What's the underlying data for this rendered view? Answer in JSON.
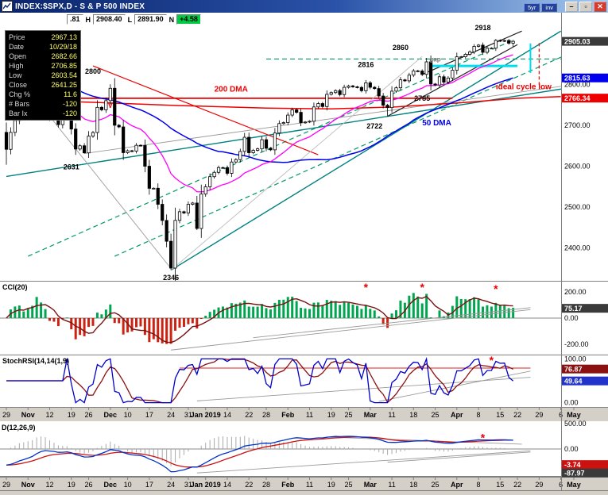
{
  "window": {
    "title": "INDEX:$SPX,D - S & P 500 INDEX",
    "toolbar_buttons": [
      {
        "label": "5yr"
      },
      {
        "label": "inv"
      }
    ],
    "controls": [
      {
        "name": "minimize",
        "glyph": "–"
      },
      {
        "name": "maximize",
        "glyph": "▫"
      },
      {
        "name": "close",
        "glyph": "✕"
      }
    ]
  },
  "quote_strip": {
    "cells": [
      {
        "text": ".81",
        "box": true
      },
      {
        "text": "H"
      },
      {
        "text": "2908.40",
        "box": true
      },
      {
        "text": "L"
      },
      {
        "text": "2891.90",
        "box": true
      },
      {
        "text": "N"
      },
      {
        "text": "+4.58",
        "box": true,
        "bg": "#00cc44"
      }
    ]
  },
  "data_box": {
    "rows": [
      [
        "Price",
        "2967.13"
      ],
      [
        "Date",
        "10/29/18"
      ],
      [
        "Open",
        "2682.66"
      ],
      [
        "High",
        "2706.85"
      ],
      [
        "Low",
        "2603.54"
      ],
      [
        "Close",
        "2641.25"
      ],
      [
        "Chg %",
        "11.6"
      ],
      [
        "# Bars",
        "-120"
      ],
      [
        "Bar Ix",
        "-120"
      ]
    ]
  },
  "chart_data": {
    "type": "candlestick",
    "symbol": "INDEX:$SPX,D",
    "title": "S & P 500 INDEX",
    "x_ticks": [
      [
        0,
        "29",
        0
      ],
      [
        5,
        "Nov",
        1
      ],
      [
        10,
        "12",
        0
      ],
      [
        15,
        "19",
        0
      ],
      [
        19,
        "26",
        0
      ],
      [
        24,
        "Dec",
        1
      ],
      [
        28,
        "10",
        0
      ],
      [
        33,
        "17",
        0
      ],
      [
        38,
        "24",
        0
      ],
      [
        42,
        "31",
        0
      ],
      [
        46,
        "Jan 2019",
        1
      ],
      [
        51,
        "14",
        0
      ],
      [
        56,
        "22",
        0
      ],
      [
        60,
        "28",
        0
      ],
      [
        65,
        "Feb",
        1
      ],
      [
        70,
        "11",
        0
      ],
      [
        75,
        "19",
        0
      ],
      [
        79,
        "25",
        0
      ],
      [
        84,
        "Mar",
        1
      ],
      [
        89,
        "11",
        0
      ],
      [
        94,
        "18",
        0
      ],
      [
        99,
        "25",
        0
      ],
      [
        104,
        "Apr",
        1
      ],
      [
        109,
        "8",
        0
      ],
      [
        114,
        "15",
        0
      ],
      [
        118,
        "22",
        0
      ],
      [
        123,
        "29",
        0
      ],
      [
        128,
        "6",
        0
      ],
      [
        131,
        "May",
        1
      ]
    ],
    "price_pane": {
      "ylim": [
        2320,
        2975
      ],
      "first_bar": {
        "open": 2682.66,
        "high": 2706.85,
        "low": 2603.54,
        "close": 2641.25
      },
      "closes": [
        2641.25,
        2682.63,
        2711.74,
        2740.37,
        2723.06,
        2738.31,
        2755.45,
        2813.89,
        2806.83,
        2781.01,
        2726.22,
        2722.18,
        2701.58,
        2730.2,
        2736.27,
        2690.73,
        2641.89,
        2649.93,
        2632.56,
        2673.45,
        2682.17,
        2743.79,
        2737.8,
        2760.17,
        2790.37,
        2700.06,
        2695.95,
        2633.08,
        2637.72,
        2636.78,
        2651.07,
        2650.54,
        2599.95,
        2545.94,
        2546.16,
        2506.96,
        2467.42,
        2416.62,
        2351.1,
        2467.7,
        2488.83,
        2485.74,
        2506.85,
        2510.03,
        2447.89,
        2531.94,
        2549.69,
        2574.41,
        2584.96,
        2596.64,
        2596.26,
        2582.61,
        2610.3,
        2616.1,
        2635.96,
        2670.71,
        2632.9,
        2638.7,
        2642.33,
        2664.76,
        2643.85,
        2640.0,
        2681.05,
        2704.1,
        2706.53,
        2724.87,
        2737.7,
        2731.61,
        2706.05,
        2707.88,
        2709.8,
        2744.73,
        2753.03,
        2745.73,
        2775.6,
        2779.76,
        2784.7,
        2774.88,
        2792.67,
        2796.11,
        2793.9,
        2792.38,
        2784.49,
        2803.69,
        2792.81,
        2789.65,
        2771.45,
        2748.93,
        2743.07,
        2783.3,
        2791.52,
        2810.92,
        2808.48,
        2822.48,
        2832.94,
        2832.57,
        2824.23,
        2854.88,
        2800.71,
        2798.36,
        2818.46,
        2805.37,
        2815.44,
        2834.4,
        2867.19,
        2867.24,
        2873.4,
        2879.39,
        2892.74,
        2895.77,
        2878.2,
        2888.21,
        2888.32,
        2907.41,
        2905.58,
        2907.06,
        2900.45,
        2905.03
      ],
      "high_overrides": {
        "7": 2815.15,
        "24": 2800.18,
        "113": 2910.54,
        "117": 2908.4
      },
      "low_overrides": {
        "18": 2631.09,
        "38": 2346.58,
        "44": 2443.96,
        "88": 2722.27,
        "117": 2891.9
      },
      "ema20_seed": 2780,
      "sma50_pad": {
        "start": 2940,
        "step": 3.75,
        "count": 49
      },
      "dma200_points": [
        [
          0,
          2763
        ],
        [
          20,
          2756
        ],
        [
          40,
          2748
        ],
        [
          60,
          2742
        ],
        [
          75,
          2740
        ],
        [
          90,
          2745
        ],
        [
          105,
          2755
        ],
        [
          118,
          2766
        ],
        [
          128,
          2770
        ]
      ],
      "grid_labels": [
        {
          "v": 2900,
          "t": "2900.00"
        },
        {
          "v": 2800,
          "t": "2800.00"
        },
        {
          "v": 2700,
          "t": "2700.00"
        },
        {
          "v": 2600,
          "t": "2600.00"
        },
        {
          "v": 2500,
          "t": "2500.00"
        },
        {
          "v": 2400,
          "t": "2400.00"
        }
      ],
      "tags": [
        {
          "v": 2905.03,
          "t": "2905.03",
          "bg": "#3a3a3a"
        },
        {
          "v": 2815.63,
          "t": "2815.63",
          "bg": "#0000ee"
        },
        {
          "v": 2766.34,
          "t": "2766.34",
          "bg": "#ee0000"
        }
      ],
      "trendlines": [
        {
          "p": [
            [
              0,
              2575
            ],
            [
              132,
              2795
            ]
          ],
          "c": "#008080",
          "w": 1.4
        },
        {
          "p": [
            [
              38,
              2346
            ],
            [
              128,
              2930
            ]
          ],
          "c": "#008080",
          "w": 1.4
        },
        {
          "p": [
            [
              5,
              2380
            ],
            [
              117,
              2908
            ]
          ],
          "c": "#009966",
          "w": 1.2,
          "d": "6,4"
        },
        {
          "p": [
            [
              25,
              2380
            ],
            [
              132,
              2885
            ]
          ],
          "c": "#009966",
          "w": 1.2,
          "d": "6,4"
        },
        {
          "p": [
            [
              60,
              2862
            ],
            [
              132,
              2862
            ]
          ],
          "c": "#009966",
          "w": 1.2,
          "d": "6,4"
        },
        {
          "p": [
            [
              0,
              2766
            ],
            [
              103,
              2766
            ]
          ],
          "c": "#ee0000",
          "w": 1.8
        },
        {
          "p": [
            [
              20,
              2845
            ],
            [
              72,
              2628
            ]
          ],
          "c": "#ee0000",
          "w": 1.2
        },
        {
          "p": [
            [
              3,
              2815
            ],
            [
              38,
              2350
            ]
          ],
          "c": "#999999",
          "w": 0.9
        },
        {
          "p": [
            [
              18,
              2631
            ],
            [
              130,
              2798
            ]
          ],
          "c": "#999999",
          "w": 0.9
        },
        {
          "p": [
            [
              38,
              2346
            ],
            [
              96,
              2868
            ]
          ],
          "c": "#bbbbbb",
          "w": 0.9
        },
        {
          "p": [
            [
              88,
              2722
            ],
            [
              118,
              2897
            ]
          ],
          "c": "#222222",
          "w": 1.2
        },
        {
          "p": [
            [
              96,
              2824
            ],
            [
              119,
              2930
            ]
          ],
          "c": "#222222",
          "w": 1.2
        },
        {
          "p": [
            [
              98,
              2845
            ],
            [
              118,
              2845
            ]
          ],
          "c": "#00dded",
          "w": 3
        },
        {
          "p": [
            [
              121,
              2828
            ],
            [
              121,
              2900
            ]
          ],
          "c": "#00dded",
          "w": 2
        },
        {
          "p": [
            [
              123,
              2798
            ],
            [
              123,
              2903
            ]
          ],
          "c": "#ee0000",
          "w": 1.2,
          "d": "4,3"
        }
      ],
      "labels": [
        {
          "i": 20,
          "v": 2826,
          "t": "2800"
        },
        {
          "i": 15,
          "v": 2592,
          "t": "2631"
        },
        {
          "i": 38,
          "v": 2322,
          "t": "2346"
        },
        {
          "i": 85,
          "v": 2692,
          "t": "2722"
        },
        {
          "i": 96,
          "v": 2760,
          "t": "2785"
        },
        {
          "i": 83,
          "v": 2842,
          "t": "2816"
        },
        {
          "i": 91,
          "v": 2884,
          "t": "2860"
        },
        {
          "i": 110,
          "v": 2932,
          "t": "2918"
        },
        {
          "i": 99,
          "v": 2856,
          "t": "gap",
          "c": "#777777",
          "s": 8
        },
        {
          "i": 24,
          "v": 2742,
          "t": "V",
          "c": "#ee0000"
        }
      ],
      "texts": [
        {
          "i": 113,
          "v": 2788,
          "t": "ideal cycle low",
          "c": "#ee0000"
        },
        {
          "i": 48,
          "v": 2782,
          "t": "200 DMA",
          "c": "#ee0000"
        },
        {
          "i": 96,
          "v": 2700,
          "t": "50 DMA",
          "c": "#0000ee"
        }
      ]
    },
    "cci_pane": {
      "label": "CCI(20)",
      "period": 20,
      "axis": [
        {
          "v": 200,
          "t": "200.00"
        },
        {
          "v": 0,
          "t": "0.00"
        },
        {
          "v": -200,
          "t": "-200.00"
        }
      ],
      "tag": {
        "v": 75.17,
        "t": "75.17",
        "bg": "#3a3a3a"
      },
      "trendlines": [
        {
          "p": [
            [
              38,
              -245
            ],
            [
              121,
              65
            ]
          ],
          "c": "#999999",
          "w": 0.9
        },
        {
          "p": [
            [
              57,
              -150
            ],
            [
              121,
              80
            ]
          ],
          "c": "#999999",
          "w": 0.9
        }
      ],
      "asterisks": [
        [
          83,
          232
        ],
        [
          96,
          232
        ],
        [
          113,
          220
        ]
      ]
    },
    "stoch_pane": {
      "label": "StochRSI(14,14(1,9)",
      "axis": [
        {
          "v": 100,
          "t": "100.00"
        },
        {
          "v": 0,
          "t": "0.00"
        }
      ],
      "tags": [
        {
          "v": 76.87,
          "t": "76.87",
          "bg": "#8b1111"
        },
        {
          "v": 49.64,
          "t": "49.64",
          "bg": "#2233cc"
        }
      ],
      "trendlines": [
        {
          "p": [
            [
              40,
              79
            ],
            [
              121,
              79
            ]
          ],
          "c": "#dd2222",
          "w": 1.1
        },
        {
          "p": [
            [
              86,
              3
            ],
            [
              121,
              72
            ]
          ],
          "c": "#999999",
          "w": 0.9
        },
        {
          "p": [
            [
              44,
              4
            ],
            [
              121,
              58
            ]
          ],
          "c": "#999999",
          "w": 0.9
        }
      ],
      "asterisks": [
        [
          112,
          95
        ]
      ]
    },
    "macd_pane": {
      "label": "D(12,26,9)",
      "axis": [
        {
          "v": 85,
          "t": "500.00"
        },
        {
          "v": 0,
          "t": "0.00"
        }
      ],
      "tags": [
        {
          "v": -52,
          "t": "-3.74",
          "bg": "#cc1111"
        },
        {
          "v": -80,
          "t": "-87.97",
          "bg": "#3a3a3a"
        }
      ],
      "seeds": {
        "e12": 2712,
        "e26": 2764
      },
      "trendlines": [
        {
          "p": [
            [
              44,
              -80
            ],
            [
              121,
              -6
            ]
          ],
          "c": "#999999",
          "w": 0.9
        },
        {
          "p": [
            [
              88,
              -44
            ],
            [
              121,
              -10
            ]
          ],
          "c": "#999999",
          "w": 0.9
        },
        {
          "p": [
            [
              74,
              40
            ],
            [
              119,
              16
            ]
          ],
          "c": "#999999",
          "w": 0.9
        }
      ],
      "asterisks": [
        [
          110,
          36
        ]
      ]
    },
    "colors": {
      "candle": "#000000",
      "ema20": "#ff00ff",
      "sma50": "#0000ee",
      "dma200": "#ee0000",
      "cci_pos": "#00a550",
      "cci_neg": "#cc2211",
      "cci_line": "#7a1010",
      "stoch_k": "#0000cc",
      "stoch_d": "#8b1111",
      "macd_line": "#0033cc",
      "macd_signal": "#cc1111",
      "hist": "#aaaaaa",
      "date_row_bg": "#d4d0c8",
      "asterisk": "#ee0000"
    }
  }
}
